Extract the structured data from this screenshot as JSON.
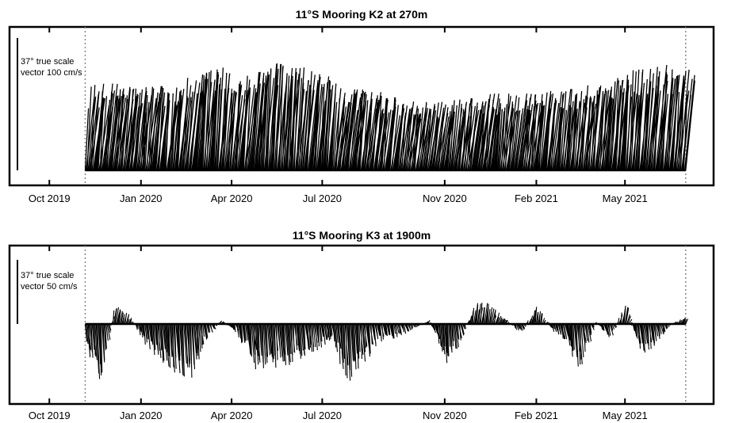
{
  "chart_data": [
    {
      "type": "line",
      "title": "11°S Mooring K2 at 270m",
      "x_tick_labels": [
        "Oct 2019",
        "Jan 2020",
        "Apr 2020",
        "Jul 2020",
        "Nov 2020",
        "Feb 2021",
        "May 2021"
      ],
      "x_ticks": [
        "2019-10-01",
        "2020-01-01",
        "2020-04-01",
        "2020-07-01",
        "2020-11-01",
        "2021-02-01",
        "2021-05-01"
      ],
      "xlim": [
        "2019-08-22",
        "2021-07-29"
      ],
      "record_start": "2019-11-06",
      "record_end": "2021-07-01",
      "scale_vector": {
        "line1": "37° true scale",
        "line2": "vector 100 cm/s",
        "magnitude_cm_s": 100
      },
      "speed_envelope_cm_s": {
        "dates": [
          "2019-11-06",
          "2019-12-01",
          "2020-01-01",
          "2020-02-01",
          "2020-02-25",
          "2020-03-15",
          "2020-04-01",
          "2020-04-20",
          "2020-05-10",
          "2020-06-01",
          "2020-06-20",
          "2020-07-10",
          "2020-08-01",
          "2020-09-01",
          "2020-10-01",
          "2020-11-01",
          "2020-12-01",
          "2021-01-01",
          "2021-02-01",
          "2021-03-01",
          "2021-04-01",
          "2021-05-01",
          "2021-06-01",
          "2021-07-01"
        ],
        "values": [
          60,
          62,
          58,
          62,
          68,
          75,
          64,
          70,
          76,
          73,
          70,
          60,
          58,
          53,
          48,
          50,
          54,
          54,
          55,
          58,
          62,
          70,
          74,
          70
        ]
      },
      "grid": false
    },
    {
      "type": "line",
      "title": "11°S Mooring K3 at 1900m",
      "x_tick_labels": [
        "Oct 2019",
        "Jan 2020",
        "Apr 2020",
        "Jul 2020",
        "Nov 2020",
        "Feb 2021",
        "May 2021"
      ],
      "x_ticks": [
        "2019-10-01",
        "2020-01-01",
        "2020-04-01",
        "2020-07-01",
        "2020-11-01",
        "2021-02-01",
        "2021-05-01"
      ],
      "xlim": [
        "2019-08-22",
        "2021-07-29"
      ],
      "record_start": "2019-11-06",
      "record_end": "2021-07-01",
      "scale_vector": {
        "line1": "37° true scale",
        "line2": "vector 50 cm/s",
        "magnitude_cm_s": 50
      },
      "along_flow_cm_s": {
        "dates": [
          "2019-11-06",
          "2019-11-20",
          "2019-12-05",
          "2019-12-20",
          "2020-01-05",
          "2020-01-20",
          "2020-02-05",
          "2020-02-20",
          "2020-03-05",
          "2020-03-20",
          "2020-04-05",
          "2020-04-25",
          "2020-05-15",
          "2020-06-01",
          "2020-06-20",
          "2020-07-10",
          "2020-07-25",
          "2020-08-10",
          "2020-08-25",
          "2020-09-10",
          "2020-09-25",
          "2020-10-15",
          "2020-11-01",
          "2020-11-15",
          "2020-12-01",
          "2020-12-15",
          "2021-01-01",
          "2021-01-15",
          "2021-02-01",
          "2021-02-15",
          "2021-03-01",
          "2021-03-15",
          "2021-04-01",
          "2021-04-15",
          "2021-05-01",
          "2021-05-15",
          "2021-06-01",
          "2021-06-15",
          "2021-07-01"
        ],
        "values": [
          -14,
          -32,
          10,
          4,
          -12,
          -20,
          -30,
          -28,
          -8,
          2,
          -5,
          -25,
          -22,
          -20,
          -15,
          -8,
          -33,
          -22,
          -10,
          -8,
          -4,
          2,
          -20,
          -10,
          12,
          10,
          2,
          -5,
          10,
          -3,
          -10,
          -24,
          1,
          -8,
          12,
          -18,
          -10,
          0,
          4
        ]
      },
      "grid": false
    }
  ]
}
